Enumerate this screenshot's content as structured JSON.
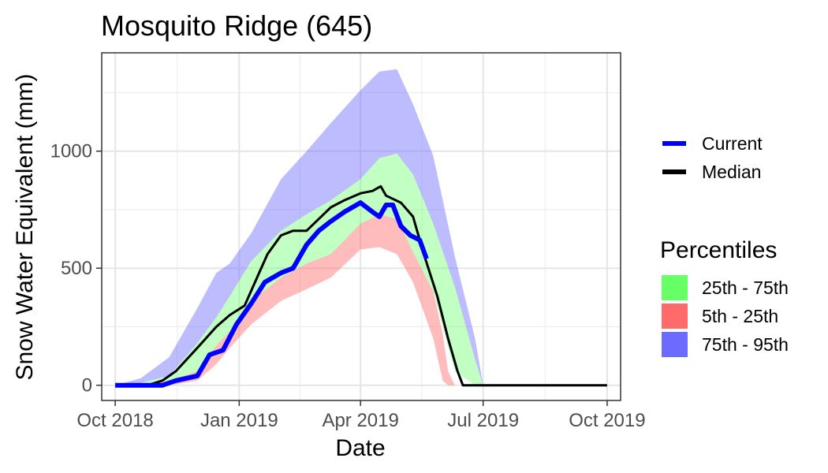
{
  "chart_data": {
    "type": "area",
    "title": "Mosquito Ridge (645)",
    "xlabel": "Date",
    "ylabel": "Snow Water Equivalent (mm)",
    "x_ticks": [
      "Oct 2018",
      "Jan 2019",
      "Apr 2019",
      "Jul 2019",
      "Oct 2019"
    ],
    "x_tick_dates": [
      "2018-10-01",
      "2019-01-01",
      "2019-04-01",
      "2019-07-01",
      "2019-10-01"
    ],
    "y_ticks": [
      0,
      500,
      1000
    ],
    "xlim": [
      "2018-09-21",
      "2019-10-11"
    ],
    "ylim": [
      -65,
      1420
    ],
    "grid": true,
    "legend_placement": "right",
    "percentiles_title": "Percentiles",
    "bands": [
      {
        "name": "75th - 95th",
        "color": "#6b6bff",
        "fill_opacity": 0.45,
        "points": [
          [
            "2018-10-01",
            0,
            0
          ],
          [
            "2018-10-20",
            10,
            30
          ],
          [
            "2018-11-10",
            40,
            120
          ],
          [
            "2018-12-01",
            180,
            330
          ],
          [
            "2018-12-15",
            290,
            480
          ],
          [
            "2018-12-25",
            380,
            520
          ],
          [
            "2019-01-10",
            530,
            650
          ],
          [
            "2019-02-01",
            660,
            880
          ],
          [
            "2019-02-20",
            730,
            1000
          ],
          [
            "2019-03-10",
            790,
            1120
          ],
          [
            "2019-04-01",
            880,
            1260
          ],
          [
            "2019-04-15",
            970,
            1340
          ],
          [
            "2019-04-28",
            990,
            1350
          ],
          [
            "2019-05-10",
            900,
            1200
          ],
          [
            "2019-05-25",
            690,
            980
          ],
          [
            "2019-06-10",
            420,
            550
          ],
          [
            "2019-06-25",
            110,
            200
          ],
          [
            "2019-07-01",
            0,
            0
          ]
        ]
      },
      {
        "name": "25th - 75th",
        "color": "#66ff66",
        "fill_opacity": 0.4,
        "points": [
          [
            "2018-10-01",
            0,
            0
          ],
          [
            "2018-10-20",
            0,
            10
          ],
          [
            "2018-11-10",
            20,
            40
          ],
          [
            "2018-12-01",
            60,
            180
          ],
          [
            "2018-12-15",
            170,
            290
          ],
          [
            "2018-12-25",
            230,
            380
          ],
          [
            "2019-01-10",
            360,
            530
          ],
          [
            "2019-02-01",
            460,
            660
          ],
          [
            "2019-02-20",
            520,
            730
          ],
          [
            "2019-03-10",
            560,
            790
          ],
          [
            "2019-04-01",
            690,
            880
          ],
          [
            "2019-04-15",
            730,
            970
          ],
          [
            "2019-04-28",
            710,
            990
          ],
          [
            "2019-05-10",
            570,
            900
          ],
          [
            "2019-05-25",
            400,
            690
          ],
          [
            "2019-06-10",
            60,
            420
          ],
          [
            "2019-06-25",
            0,
            110
          ],
          [
            "2019-07-01",
            0,
            0
          ]
        ]
      },
      {
        "name": "5th - 25th",
        "color": "#ff6b6b",
        "fill_opacity": 0.45,
        "points": [
          [
            "2018-10-01",
            0,
            0
          ],
          [
            "2018-10-20",
            0,
            0
          ],
          [
            "2018-11-10",
            0,
            20
          ],
          [
            "2018-12-01",
            20,
            60
          ],
          [
            "2018-12-15",
            90,
            170
          ],
          [
            "2018-12-25",
            160,
            230
          ],
          [
            "2019-01-10",
            260,
            360
          ],
          [
            "2019-02-01",
            360,
            460
          ],
          [
            "2019-02-20",
            410,
            520
          ],
          [
            "2019-03-10",
            460,
            560
          ],
          [
            "2019-04-01",
            580,
            690
          ],
          [
            "2019-04-15",
            590,
            730
          ],
          [
            "2019-04-28",
            560,
            710
          ],
          [
            "2019-05-10",
            440,
            570
          ],
          [
            "2019-05-25",
            200,
            400
          ],
          [
            "2019-06-01",
            20,
            220
          ],
          [
            "2019-06-05",
            0,
            60
          ],
          [
            "2019-06-10",
            0,
            0
          ]
        ]
      }
    ],
    "series": [
      {
        "name": "Median",
        "color": "#000000",
        "points": [
          [
            "2018-10-01",
            0
          ],
          [
            "2018-10-25",
            0
          ],
          [
            "2018-11-05",
            20
          ],
          [
            "2018-11-15",
            60
          ],
          [
            "2018-12-01",
            160
          ],
          [
            "2018-12-15",
            250
          ],
          [
            "2018-12-25",
            300
          ],
          [
            "2019-01-05",
            340
          ],
          [
            "2019-01-15",
            470
          ],
          [
            "2019-01-22",
            560
          ],
          [
            "2019-02-01",
            640
          ],
          [
            "2019-02-10",
            660
          ],
          [
            "2019-02-20",
            660
          ],
          [
            "2019-03-01",
            710
          ],
          [
            "2019-03-10",
            760
          ],
          [
            "2019-03-20",
            790
          ],
          [
            "2019-04-01",
            820
          ],
          [
            "2019-04-10",
            830
          ],
          [
            "2019-04-16",
            850
          ],
          [
            "2019-04-20",
            810
          ],
          [
            "2019-05-01",
            780
          ],
          [
            "2019-05-10",
            720
          ],
          [
            "2019-05-18",
            560
          ],
          [
            "2019-05-28",
            380
          ],
          [
            "2019-06-05",
            200
          ],
          [
            "2019-06-12",
            60
          ],
          [
            "2019-06-16",
            0
          ],
          [
            "2019-10-01",
            0
          ]
        ]
      },
      {
        "name": "Current",
        "color": "#0000ff",
        "points": [
          [
            "2018-10-01",
            0
          ],
          [
            "2018-11-05",
            0
          ],
          [
            "2018-11-15",
            20
          ],
          [
            "2018-12-01",
            40
          ],
          [
            "2018-12-10",
            130
          ],
          [
            "2018-12-20",
            150
          ],
          [
            "2018-12-30",
            260
          ],
          [
            "2019-01-10",
            350
          ],
          [
            "2019-01-20",
            440
          ],
          [
            "2019-02-01",
            480
          ],
          [
            "2019-02-10",
            500
          ],
          [
            "2019-02-20",
            600
          ],
          [
            "2019-03-01",
            660
          ],
          [
            "2019-03-10",
            700
          ],
          [
            "2019-03-20",
            740
          ],
          [
            "2019-04-01",
            780
          ],
          [
            "2019-04-10",
            740
          ],
          [
            "2019-04-15",
            720
          ],
          [
            "2019-04-20",
            770
          ],
          [
            "2019-04-25",
            770
          ],
          [
            "2019-05-01",
            680
          ],
          [
            "2019-05-08",
            640
          ],
          [
            "2019-05-15",
            620
          ],
          [
            "2019-05-20",
            540
          ]
        ]
      }
    ]
  }
}
